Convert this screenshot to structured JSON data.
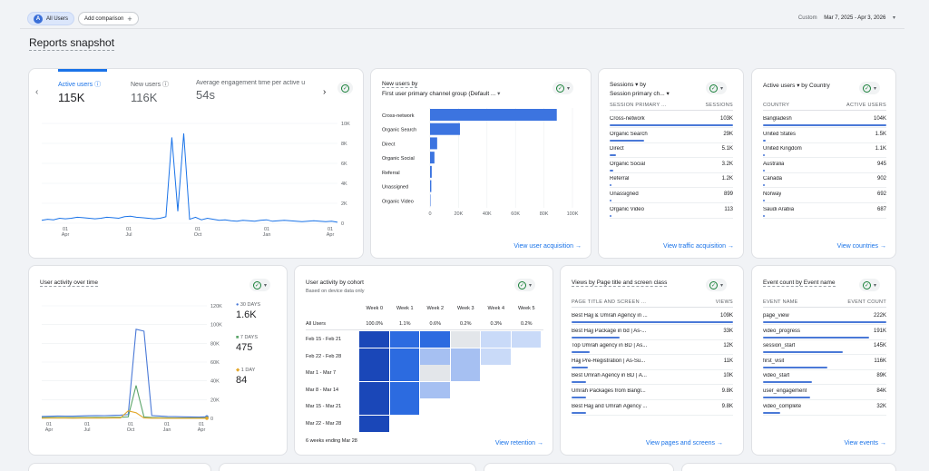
{
  "header": {
    "segment_chip": {
      "initial": "A",
      "label": "All Users"
    },
    "add_comparison": "Add comparison",
    "date_custom": "Custom",
    "date_range": "Mar 7, 2025 - Apr 3, 2026"
  },
  "page_title": "Reports snapshot",
  "overview": {
    "metrics": [
      {
        "label": "Active users",
        "value": "115K"
      },
      {
        "label": "New users",
        "value": "116K"
      },
      {
        "label": "Average engagement time per active u",
        "value": "54s"
      }
    ],
    "chart_data": {
      "type": "line",
      "x_ticks": [
        "01 Apr",
        "01 Jul",
        "01 Oct",
        "01 Jan",
        "01 Apr"
      ],
      "y_ticks": [
        "10K",
        "8K",
        "6K",
        "4K",
        "2K",
        "0"
      ],
      "ylim": [
        0,
        10000
      ],
      "series": [
        {
          "values": [
            300,
            400,
            350,
            500,
            450,
            500,
            600,
            550,
            500,
            450,
            500,
            600,
            550,
            500,
            650,
            700,
            600,
            550,
            500,
            450,
            500,
            650,
            8600,
            1200,
            9000,
            400,
            600,
            350,
            500,
            400,
            300,
            350,
            250,
            200,
            300,
            250,
            200,
            300,
            350,
            200,
            250,
            300,
            250,
            200,
            150,
            200,
            250,
            200,
            150,
            200,
            100
          ]
        }
      ]
    }
  },
  "acquisition": {
    "title_line1": "New users by",
    "title_line2": "First user primary channel group (Default ...",
    "chart_data": {
      "type": "bar",
      "categories": [
        "Cross-network",
        "Organic Search",
        "Direct",
        "Organic Social",
        "Referral",
        "Unassigned",
        "Organic Video"
      ],
      "values": [
        89000,
        21000,
        5000,
        3100,
        1200,
        900,
        110
      ],
      "x_ticks": [
        "0",
        "20K",
        "40K",
        "60K",
        "80K",
        "100K"
      ],
      "xlim": [
        0,
        100000
      ]
    },
    "link": "View user acquisition →"
  },
  "sessions": {
    "title_line1": "Sessions ▾ by",
    "title_line2": "Session primary ch... ▾",
    "col1": "SESSION PRIMARY ...",
    "col2": "SESSIONS",
    "rows": [
      {
        "name": "Cross-network",
        "value": "103K",
        "pct": 100
      },
      {
        "name": "Organic Search",
        "value": "29K",
        "pct": 28
      },
      {
        "name": "Direct",
        "value": "5.1K",
        "pct": 5
      },
      {
        "name": "Organic Social",
        "value": "3.2K",
        "pct": 3
      },
      {
        "name": "Referral",
        "value": "1.2K",
        "pct": 1.5
      },
      {
        "name": "Unassigned",
        "value": "899",
        "pct": 1
      },
      {
        "name": "Organic Video",
        "value": "113",
        "pct": 0.5
      }
    ],
    "link": "View traffic acquisition →"
  },
  "country": {
    "title": "Active users ▾ by Country",
    "col1": "COUNTRY",
    "col2": "ACTIVE USERS",
    "rows": [
      {
        "name": "Bangladesh",
        "value": "104K",
        "pct": 100
      },
      {
        "name": "United States",
        "value": "1.5K",
        "pct": 2
      },
      {
        "name": "United Kingdom",
        "value": "1.1K",
        "pct": 1.5
      },
      {
        "name": "Australia",
        "value": "945",
        "pct": 1
      },
      {
        "name": "Canada",
        "value": "902",
        "pct": 1
      },
      {
        "name": "Norway",
        "value": "692",
        "pct": 0.8
      },
      {
        "name": "Saudi Arabia",
        "value": "687",
        "pct": 0.8
      }
    ],
    "link": "View countries →"
  },
  "activity": {
    "title": "User activity over time",
    "legend": [
      {
        "label": "30 DAYS",
        "value": "1.6K",
        "color": "#4a79d7"
      },
      {
        "label": "7 DAYS",
        "value": "475",
        "color": "#5aa469"
      },
      {
        "label": "1 DAY",
        "value": "84",
        "color": "#e3a82b"
      }
    ],
    "chart_data": {
      "type": "line",
      "x_ticks": [
        "01 Apr",
        "01 Jul",
        "01 Oct",
        "01 Jan",
        "01 Apr"
      ],
      "y_ticks": [
        "120K",
        "100K",
        "80K",
        "60K",
        "40K",
        "20K",
        "0"
      ],
      "ylim": [
        0,
        120000
      ],
      "series": [
        {
          "name": "30 DAYS",
          "values": [
            2000,
            2200,
            2500,
            2400,
            2300,
            2600,
            2800,
            3000,
            2900,
            3200,
            3500,
            4000,
            95000,
            93000,
            3000,
            2500,
            2000,
            1800,
            1600,
            1500,
            1400,
            1600
          ]
        },
        {
          "name": "7 DAYS",
          "values": [
            800,
            900,
            1000,
            900,
            800,
            900,
            1000,
            1100,
            1000,
            1200,
            1300,
            1500,
            35000,
            1500,
            900,
            700,
            600,
            500,
            450,
            450,
            450,
            475
          ]
        },
        {
          "name": "1 DAY",
          "values": [
            200,
            250,
            300,
            250,
            200,
            250,
            300,
            300,
            300,
            350,
            400,
            8000,
            6000,
            400,
            200,
            150,
            120,
            100,
            90,
            85,
            84,
            84
          ]
        }
      ]
    }
  },
  "cohort": {
    "title": "User activity by cohort",
    "subtitle": "Based on device data only",
    "weeks": [
      "Week 0",
      "Week 1",
      "Week 2",
      "Week 3",
      "Week 4",
      "Week 5"
    ],
    "all_users_label": "All Users",
    "all_users": [
      "100.0%",
      "1.1%",
      "0.6%",
      "0.2%",
      "0.3%",
      "0.2%"
    ],
    "rows": [
      {
        "label": "Feb 15 - Feb 21",
        "shades": [
          4,
          3,
          3,
          1,
          1,
          1
        ]
      },
      {
        "label": "Feb 22 - Feb 28",
        "shades": [
          4,
          3,
          2,
          2,
          1
        ]
      },
      {
        "label": "Mar 1 - Mar 7",
        "shades": [
          4,
          3,
          1,
          2
        ]
      },
      {
        "label": "Mar 8 - Mar 14",
        "shades": [
          4,
          3,
          2
        ]
      },
      {
        "label": "Mar 15 - Mar 21",
        "shades": [
          4,
          3
        ]
      },
      {
        "label": "Mar 22 - Mar 28",
        "shades": [
          4
        ]
      }
    ],
    "footer": "6 weeks ending Mar 28",
    "link": "View retention →"
  },
  "pages": {
    "title": "Views by Page title and screen class",
    "col1": "PAGE TITLE AND SCREEN ...",
    "col2": "VIEWS",
    "rows": [
      {
        "name": "Best Hajj & Umrah Agency in ...",
        "value": "109K",
        "pct": 100
      },
      {
        "name": "Best Hajj Package in bd | As-...",
        "value": "33K",
        "pct": 30
      },
      {
        "name": "Top Umrah agency in BD | As...",
        "value": "12K",
        "pct": 11
      },
      {
        "name": "Hajj Pre-Registration | As-Su...",
        "value": "11K",
        "pct": 10
      },
      {
        "name": "Best Umrah Agency in BD | A...",
        "value": "10K",
        "pct": 9
      },
      {
        "name": "Umrah Packages from Bangl...",
        "value": "9.8K",
        "pct": 9
      },
      {
        "name": "Best Hajj and Umrah Agency ...",
        "value": "9.8K",
        "pct": 9
      }
    ],
    "link": "View pages and screens →"
  },
  "events": {
    "title": "Event count by Event name",
    "col1": "EVENT NAME",
    "col2": "EVENT COUNT",
    "rows": [
      {
        "name": "page_view",
        "value": "222K",
        "pct": 100
      },
      {
        "name": "video_progress",
        "value": "191K",
        "pct": 86
      },
      {
        "name": "session_start",
        "value": "145K",
        "pct": 65
      },
      {
        "name": "first_visit",
        "value": "116K",
        "pct": 52
      },
      {
        "name": "video_start",
        "value": "89K",
        "pct": 40
      },
      {
        "name": "user_engagement",
        "value": "84K",
        "pct": 38
      },
      {
        "name": "video_complete",
        "value": "32K",
        "pct": 14
      }
    ],
    "link": "View events →"
  }
}
